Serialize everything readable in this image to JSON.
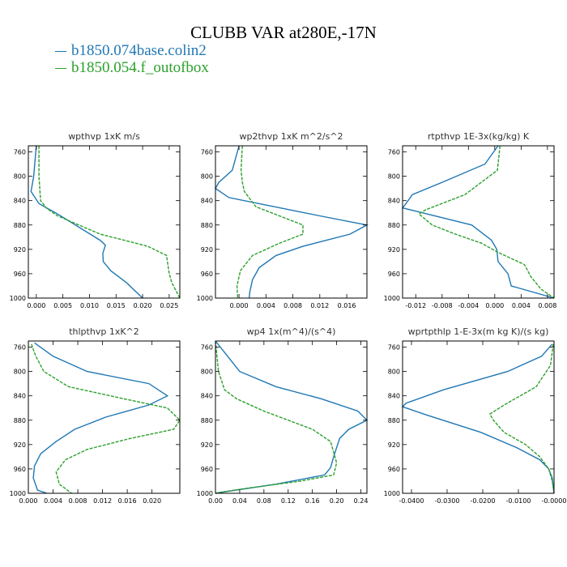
{
  "title": "CLUBB VAR at280E,-17N",
  "legend": [
    {
      "label": "b1850.074base.colin2",
      "color": "#1f77b4"
    },
    {
      "label": "b1850.054.f_outofbox",
      "color": "#2ca02c"
    }
  ],
  "chart_data": [
    {
      "type": "line",
      "title": "wpthvp   1xK m/s",
      "xlim": [
        -0.0015,
        0.027
      ],
      "ylim": [
        1000,
        750
      ],
      "xticks": [
        "0.000",
        "0.005",
        "0.010",
        "0.015",
        "0.020",
        "0.025"
      ],
      "xtick_values": [
        0,
        0.005,
        0.01,
        0.015,
        0.02,
        0.025
      ],
      "yticks": [
        760,
        800,
        840,
        880,
        920,
        960,
        1000
      ],
      "series": [
        {
          "name": "b1850.074base.colin2",
          "points": [
            [
              0,
              750
            ],
            [
              -0.0005,
              800
            ],
            [
              -0.001,
              825
            ],
            [
              0.0005,
              845
            ],
            [
              0.004,
              862
            ],
            [
              0.012,
              905
            ],
            [
              0.013,
              913
            ],
            [
              0.0125,
              927
            ],
            [
              0.0126,
              940
            ],
            [
              0.014,
              955
            ],
            [
              0.017,
              975
            ],
            [
              0.02,
              1000
            ]
          ]
        },
        {
          "name": "b1850.054.f_outofbox",
          "points": [
            [
              0.0005,
              750
            ],
            [
              0.0005,
              800
            ],
            [
              0.0008,
              840
            ],
            [
              0.002,
              853
            ],
            [
              0.004,
              865
            ],
            [
              0.012,
              895
            ],
            [
              0.021,
              915
            ],
            [
              0.0245,
              930
            ],
            [
              0.025,
              960
            ],
            [
              0.0255,
              975
            ],
            [
              0.027,
              1000
            ]
          ]
        }
      ]
    },
    {
      "type": "line",
      "title": "wp2thvp   1xK m^2/s^2",
      "xlim": [
        -0.0035,
        0.019
      ],
      "ylim": [
        1000,
        750
      ],
      "xticks": [
        "0.000",
        "0.004",
        "0.008",
        "0.012",
        "0.016"
      ],
      "xtick_values": [
        0,
        0.004,
        0.008,
        0.012,
        0.016
      ],
      "yticks": [
        760,
        800,
        840,
        880,
        920,
        960,
        1000
      ],
      "series": [
        {
          "name": "b1850.074base.colin2",
          "points": [
            [
              0,
              750
            ],
            [
              -0.001,
              790
            ],
            [
              -0.003,
              810
            ],
            [
              -0.0035,
              820
            ],
            [
              -0.0015,
              835
            ],
            [
              0.012,
              865
            ],
            [
              0.019,
              880
            ],
            [
              0.0165,
              895
            ],
            [
              0.0095,
              915
            ],
            [
              0.0055,
              930
            ],
            [
              0.003,
              950
            ],
            [
              0.002,
              970
            ],
            [
              0.0016,
              990
            ],
            [
              0.0015,
              1000
            ]
          ]
        },
        {
          "name": "b1850.054.f_outofbox",
          "points": [
            [
              0.0005,
              750
            ],
            [
              0.0003,
              790
            ],
            [
              0.0005,
              810
            ],
            [
              0.0008,
              825
            ],
            [
              0.0025,
              850
            ],
            [
              0.0095,
              880
            ],
            [
              0.0095,
              895
            ],
            [
              0.006,
              910
            ],
            [
              0.002,
              930
            ],
            [
              0.0002,
              955
            ],
            [
              -0.0003,
              980
            ],
            [
              -0.0002,
              1000
            ]
          ]
        }
      ]
    },
    {
      "type": "line",
      "title": "rtpthvp   1E-3x(kg/kg) K",
      "xlim": [
        -0.014,
        0.009
      ],
      "ylim": [
        1000,
        750
      ],
      "xticks": [
        "-0.012",
        "-0.008",
        "-0.004",
        "0.000",
        "0.004",
        "0.008"
      ],
      "xtick_values": [
        -0.012,
        -0.008,
        -0.004,
        0,
        0.004,
        0.008
      ],
      "yticks": [
        760,
        800,
        840,
        880,
        920,
        960,
        1000
      ],
      "series": [
        {
          "name": "b1850.074base.colin2",
          "points": [
            [
              0.0005,
              750
            ],
            [
              -0.0015,
              780
            ],
            [
              -0.008,
              810
            ],
            [
              -0.0125,
              830
            ],
            [
              -0.0135,
              845
            ],
            [
              -0.014,
              852
            ],
            [
              -0.011,
              860
            ],
            [
              -0.0035,
              880
            ],
            [
              -0.0005,
              905
            ],
            [
              0.0003,
              920
            ],
            [
              0.0005,
              940
            ],
            [
              0.002,
              960
            ],
            [
              0.0025,
              980
            ],
            [
              0.009,
              1000
            ]
          ]
        },
        {
          "name": "b1850.054.f_outofbox",
          "points": [
            [
              0.0008,
              750
            ],
            [
              0.0004,
              790
            ],
            [
              -0.0045,
              830
            ],
            [
              -0.0105,
              855
            ],
            [
              -0.0115,
              862
            ],
            [
              -0.0095,
              880
            ],
            [
              -0.006,
              895
            ],
            [
              -0.002,
              910
            ],
            [
              0.0005,
              925
            ],
            [
              0.0045,
              945
            ],
            [
              0.0055,
              965
            ],
            [
              0.007,
              985
            ],
            [
              0.009,
              1000
            ]
          ]
        }
      ]
    },
    {
      "type": "line",
      "title": "thlpthvp   1xK^2",
      "xlim": [
        0,
        0.0245
      ],
      "ylim": [
        1000,
        750
      ],
      "xticks": [
        "0.000",
        "0.004",
        "0.008",
        "0.012",
        "0.016",
        "0.020"
      ],
      "xtick_values": [
        0,
        0.004,
        0.008,
        0.012,
        0.016,
        0.02
      ],
      "yticks": [
        760,
        800,
        840,
        880,
        920,
        960,
        1000
      ],
      "series": [
        {
          "name": "b1850.074base.colin2",
          "points": [
            [
              0.001,
              753
            ],
            [
              0.004,
              775
            ],
            [
              0.0095,
              800
            ],
            [
              0.0195,
              820
            ],
            [
              0.0225,
              840
            ],
            [
              0.0195,
              855
            ],
            [
              0.0125,
              875
            ],
            [
              0.0075,
              895
            ],
            [
              0.0045,
              915
            ],
            [
              0.002,
              935
            ],
            [
              0.001,
              955
            ],
            [
              0.0008,
              975
            ],
            [
              0.0015,
              995
            ],
            [
              0.003,
              1000
            ]
          ]
        },
        {
          "name": "b1850.054.f_outofbox",
          "points": [
            [
              0.0005,
              755
            ],
            [
              0.0012,
              775
            ],
            [
              0.0025,
              800
            ],
            [
              0.0065,
              825
            ],
            [
              0.0155,
              845
            ],
            [
              0.0225,
              860
            ],
            [
              0.0245,
              880
            ],
            [
              0.0235,
              895
            ],
            [
              0.0165,
              910
            ],
            [
              0.0095,
              928
            ],
            [
              0.006,
              945
            ],
            [
              0.0045,
              965
            ],
            [
              0.005,
              985
            ],
            [
              0.007,
              1000
            ]
          ]
        }
      ]
    },
    {
      "type": "line",
      "title": "wp4   1x(m^4)/(s^4)",
      "xlim": [
        0,
        0.25
      ],
      "ylim": [
        1000,
        750
      ],
      "xticks": [
        "0.00",
        "0.04",
        "0.08",
        "0.12",
        "0.16",
        "0.20",
        "0.24"
      ],
      "xtick_values": [
        0,
        0.04,
        0.08,
        0.12,
        0.16,
        0.2,
        0.24
      ],
      "yticks": [
        760,
        800,
        840,
        880,
        920,
        960,
        1000
      ],
      "series": [
        {
          "name": "b1850.074base.colin2",
          "points": [
            [
              0.0,
              750
            ],
            [
              0.02,
              775
            ],
            [
              0.04,
              800
            ],
            [
              0.1,
              825
            ],
            [
              0.175,
              845
            ],
            [
              0.235,
              865
            ],
            [
              0.25,
              880
            ],
            [
              0.22,
              895
            ],
            [
              0.205,
              910
            ],
            [
              0.195,
              940
            ],
            [
              0.19,
              958
            ],
            [
              0.18,
              970
            ],
            [
              0.1,
              985
            ],
            [
              0.02,
              997
            ],
            [
              0.0,
              1000
            ]
          ]
        },
        {
          "name": "b1850.054.f_outofbox",
          "points": [
            [
              0.0,
              750
            ],
            [
              0.005,
              800
            ],
            [
              0.015,
              830
            ],
            [
              0.035,
              845
            ],
            [
              0.08,
              865
            ],
            [
              0.16,
              895
            ],
            [
              0.19,
              915
            ],
            [
              0.2,
              950
            ],
            [
              0.195,
              970
            ],
            [
              0.14,
              980
            ],
            [
              0.05,
              992
            ],
            [
              0.01,
              998
            ],
            [
              0.0,
              1000
            ]
          ]
        }
      ]
    },
    {
      "type": "line",
      "title": "wprtpthlp   1-E-3x(m kg K)/(s kg)",
      "xlim": [
        -0.0425,
        0
      ],
      "ylim": [
        1000,
        750
      ],
      "xticks": [
        "-0.0400",
        "-0.0300",
        "-0.0200",
        "-0.0100",
        "-0.0000"
      ],
      "xtick_values": [
        -0.04,
        -0.03,
        -0.02,
        -0.01,
        0
      ],
      "yticks": [
        760,
        800,
        840,
        880,
        920,
        960,
        1000
      ],
      "series": [
        {
          "name": "b1850.074base.colin2",
          "points": [
            [
              -0.0005,
              755
            ],
            [
              -0.0035,
              775
            ],
            [
              -0.013,
              800
            ],
            [
              -0.031,
              830
            ],
            [
              -0.0415,
              852
            ],
            [
              -0.0425,
              858
            ],
            [
              -0.0355,
              872
            ],
            [
              -0.0205,
              900
            ],
            [
              -0.0105,
              925
            ],
            [
              -0.004,
              945
            ],
            [
              -0.0015,
              960
            ],
            [
              -0.0005,
              975
            ],
            [
              -0.0002,
              990
            ],
            [
              0,
              1000
            ]
          ]
        },
        {
          "name": "b1850.054.f_outofbox",
          "points": [
            [
              -0.0002,
              755
            ],
            [
              -0.001,
              790
            ],
            [
              -0.005,
              825
            ],
            [
              -0.014,
              855
            ],
            [
              -0.018,
              870
            ],
            [
              -0.017,
              880
            ],
            [
              -0.014,
              900
            ],
            [
              -0.008,
              920
            ],
            [
              -0.004,
              940
            ],
            [
              -0.0015,
              960
            ],
            [
              -0.0005,
              980
            ],
            [
              0,
              1000
            ]
          ]
        }
      ]
    }
  ]
}
